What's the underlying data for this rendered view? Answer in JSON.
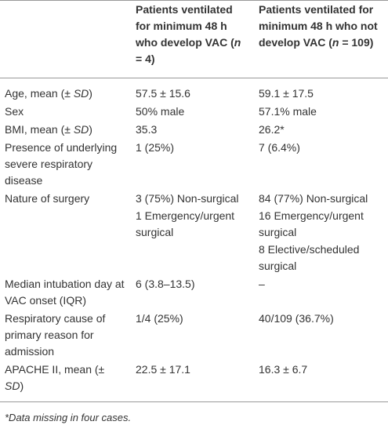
{
  "table": {
    "header": [
      [
        "Patients ventilated for minimum 48 h who develop VAC (",
        {
          "italic": "n"
        },
        " = 4)"
      ],
      [
        "Patients ventilated for minimum 48 h who not develop VAC (",
        {
          "italic": "n"
        },
        " = 109)"
      ]
    ],
    "rows": [
      {
        "label": [
          "Age, mean (± ",
          {
            "italic": "SD"
          },
          ")"
        ],
        "cells": [
          [
            "57.5 ± 15.6"
          ],
          [
            "59.1 ± 17.5"
          ]
        ]
      },
      {
        "label": [
          "Sex"
        ],
        "cells": [
          [
            "50% male"
          ],
          [
            "57.1% male"
          ]
        ]
      },
      {
        "label": [
          "BMI, mean (± ",
          {
            "italic": "SD"
          },
          ")"
        ],
        "cells": [
          [
            "35.3"
          ],
          [
            "26.2*"
          ]
        ]
      },
      {
        "label": [
          "Presence of underlying severe respiratory disease"
        ],
        "cells": [
          [
            "1 (25%)"
          ],
          [
            "7 (6.4%)"
          ]
        ]
      },
      {
        "label": [
          "Nature of surgery"
        ],
        "cells": [
          [
            "3 (75%) Non-surgical",
            "1 Emergency/urgent surgical"
          ],
          [
            "84 (77%) Non-surgical",
            "16 Emergency/urgent surgical",
            "8 Elective/scheduled surgical"
          ]
        ]
      },
      {
        "label": [
          "Median intubation day at VAC onset (IQR)"
        ],
        "cells": [
          [
            "6 (3.8–13.5)"
          ],
          [
            "–"
          ]
        ]
      },
      {
        "label": [
          "Respiratory cause of primary reason for admission"
        ],
        "cells": [
          [
            "1/4 (25%)"
          ],
          [
            "40/109 (36.7%)"
          ]
        ]
      },
      {
        "label": [
          "APACHE II, mean (± ",
          {
            "italic": "SD"
          },
          ")"
        ],
        "cells": [
          [
            "22.5 ± 17.1"
          ],
          [
            "16.3 ± 6.7"
          ]
        ]
      }
    ],
    "footnote": "*Data missing in four cases."
  }
}
